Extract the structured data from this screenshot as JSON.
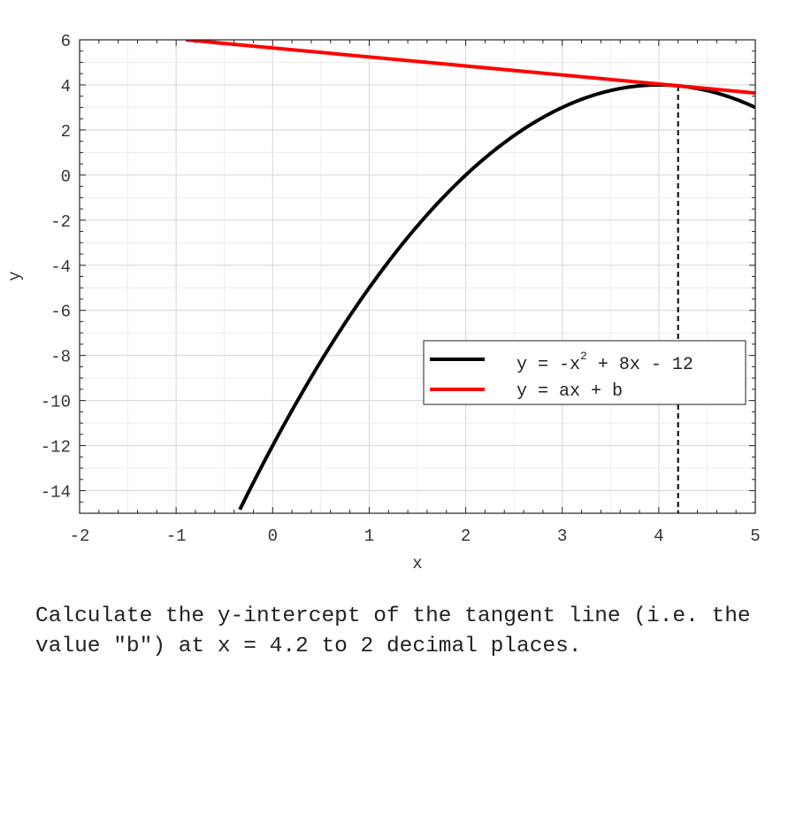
{
  "chart_data": {
    "type": "line",
    "title": "",
    "xlabel": "x",
    "ylabel": "y",
    "xlim": [
      -2,
      5
    ],
    "ylim": [
      -15,
      6
    ],
    "xticks": [
      "-2",
      "-1",
      "0",
      "1",
      "2",
      "3",
      "4",
      "5"
    ],
    "yticks": [
      "6",
      "4",
      "2",
      "0",
      "-2",
      "-4",
      "-6",
      "-8",
      "-10",
      "-12",
      "-14"
    ],
    "grid": true,
    "legend_position": "lower-right",
    "series": [
      {
        "name": "y = -x^2 + 8x - 12",
        "function": "-x^2 + 8x - 12",
        "color": "#000000",
        "x": [
          -0.34,
          0,
          0.5,
          1,
          1.5,
          2,
          2.5,
          3,
          3.5,
          4,
          4.5,
          5
        ],
        "y": [
          -14.84,
          -12,
          -8.25,
          -5,
          -2.25,
          0,
          1.75,
          3,
          3.75,
          4,
          3.75,
          3
        ]
      },
      {
        "name": "y = ax + b",
        "color": "#ff0000",
        "x": [
          -0.9,
          5
        ],
        "y": [
          6,
          3.64
        ]
      }
    ],
    "annotations": [
      {
        "type": "vertical-dashed-line",
        "x": 4.2,
        "color": "#000000"
      }
    ],
    "legend": {
      "entry1_main": "y = -x",
      "entry1_sup": "2",
      "entry1_rest": " + 8x - 12",
      "entry2": "y = ax + b"
    }
  },
  "question": "Calculate the y-intercept of the tangent line (i.e. the value \"b\") at x = 4.2 to 2 decimal places."
}
